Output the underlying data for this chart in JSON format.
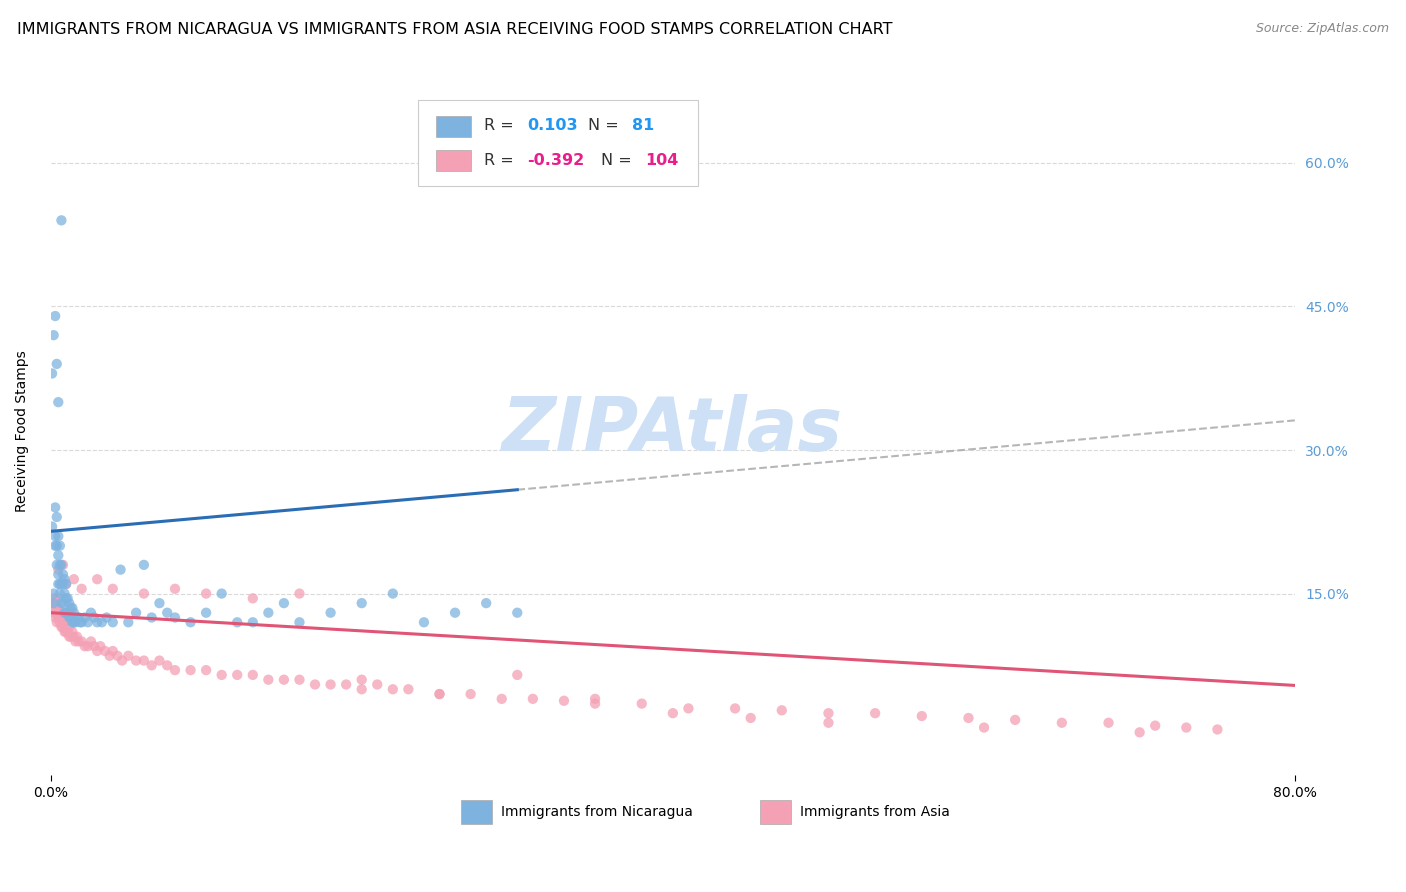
{
  "title": "IMMIGRANTS FROM NICARAGUA VS IMMIGRANTS FROM ASIA RECEIVING FOOD STAMPS CORRELATION CHART",
  "source": "Source: ZipAtlas.com",
  "ylabel": "Receiving Food Stamps",
  "ytick_labels": [
    "15.0%",
    "30.0%",
    "45.0%",
    "60.0%"
  ],
  "ytick_values": [
    0.15,
    0.3,
    0.45,
    0.6
  ],
  "xlim": [
    0.0,
    0.8
  ],
  "ylim": [
    -0.04,
    0.68
  ],
  "r_nicaragua": 0.103,
  "n_nicaragua": 81,
  "r_asia": -0.392,
  "n_asia": 104,
  "color_nicaragua": "#7eb3e0",
  "color_asia": "#f4a0b5",
  "line_color_nicaragua": "#2a6db5",
  "line_color_asia": "#e05575",
  "dash_color": "#aaaaaa",
  "background_color": "#ffffff",
  "watermark_color": "#cde0f5",
  "grid_color": "#d9d9d9",
  "title_fontsize": 11.5,
  "axis_label_fontsize": 10,
  "tick_fontsize": 10,
  "right_tick_color": "#5b9bd5",
  "scatter_alpha": 0.75,
  "scatter_size": 55,
  "nic_x": [
    0.001,
    0.002,
    0.002,
    0.003,
    0.003,
    0.003,
    0.004,
    0.004,
    0.004,
    0.005,
    0.005,
    0.005,
    0.005,
    0.006,
    0.006,
    0.006,
    0.006,
    0.007,
    0.007,
    0.007,
    0.007,
    0.008,
    0.008,
    0.008,
    0.009,
    0.009,
    0.009,
    0.01,
    0.01,
    0.01,
    0.011,
    0.011,
    0.012,
    0.012,
    0.013,
    0.013,
    0.014,
    0.014,
    0.015,
    0.015,
    0.016,
    0.017,
    0.018,
    0.019,
    0.02,
    0.022,
    0.024,
    0.026,
    0.028,
    0.03,
    0.033,
    0.036,
    0.04,
    0.045,
    0.05,
    0.055,
    0.06,
    0.065,
    0.07,
    0.075,
    0.08,
    0.09,
    0.1,
    0.11,
    0.12,
    0.13,
    0.14,
    0.15,
    0.16,
    0.18,
    0.2,
    0.22,
    0.24,
    0.26,
    0.28,
    0.3,
    0.001,
    0.002,
    0.003,
    0.004,
    0.005
  ],
  "nic_y": [
    0.22,
    0.14,
    0.15,
    0.2,
    0.21,
    0.24,
    0.18,
    0.2,
    0.23,
    0.16,
    0.17,
    0.19,
    0.21,
    0.15,
    0.16,
    0.18,
    0.2,
    0.14,
    0.16,
    0.18,
    0.54,
    0.14,
    0.16,
    0.17,
    0.13,
    0.15,
    0.165,
    0.13,
    0.145,
    0.16,
    0.13,
    0.145,
    0.125,
    0.14,
    0.125,
    0.135,
    0.12,
    0.135,
    0.12,
    0.13,
    0.12,
    0.125,
    0.125,
    0.12,
    0.12,
    0.125,
    0.12,
    0.13,
    0.125,
    0.12,
    0.12,
    0.125,
    0.12,
    0.175,
    0.12,
    0.13,
    0.18,
    0.125,
    0.14,
    0.13,
    0.125,
    0.12,
    0.13,
    0.15,
    0.12,
    0.12,
    0.13,
    0.14,
    0.12,
    0.13,
    0.14,
    0.15,
    0.12,
    0.13,
    0.14,
    0.13,
    0.38,
    0.42,
    0.44,
    0.39,
    0.35
  ],
  "asia_x": [
    0.001,
    0.002,
    0.002,
    0.003,
    0.003,
    0.004,
    0.004,
    0.005,
    0.005,
    0.005,
    0.006,
    0.006,
    0.007,
    0.007,
    0.008,
    0.008,
    0.009,
    0.009,
    0.01,
    0.01,
    0.011,
    0.012,
    0.012,
    0.013,
    0.014,
    0.015,
    0.016,
    0.017,
    0.018,
    0.02,
    0.022,
    0.024,
    0.026,
    0.028,
    0.03,
    0.032,
    0.035,
    0.038,
    0.04,
    0.043,
    0.046,
    0.05,
    0.055,
    0.06,
    0.065,
    0.07,
    0.075,
    0.08,
    0.09,
    0.1,
    0.11,
    0.12,
    0.13,
    0.14,
    0.15,
    0.16,
    0.17,
    0.18,
    0.19,
    0.2,
    0.21,
    0.22,
    0.23,
    0.25,
    0.27,
    0.29,
    0.31,
    0.33,
    0.35,
    0.38,
    0.41,
    0.44,
    0.47,
    0.5,
    0.53,
    0.56,
    0.59,
    0.62,
    0.65,
    0.68,
    0.71,
    0.73,
    0.75,
    0.005,
    0.008,
    0.01,
    0.015,
    0.02,
    0.03,
    0.04,
    0.06,
    0.08,
    0.1,
    0.13,
    0.16,
    0.2,
    0.25,
    0.3,
    0.35,
    0.4,
    0.45,
    0.5,
    0.6,
    0.7
  ],
  "asia_y": [
    0.14,
    0.13,
    0.145,
    0.125,
    0.135,
    0.12,
    0.13,
    0.125,
    0.135,
    0.145,
    0.12,
    0.13,
    0.115,
    0.125,
    0.115,
    0.125,
    0.11,
    0.12,
    0.11,
    0.12,
    0.11,
    0.105,
    0.115,
    0.105,
    0.11,
    0.105,
    0.1,
    0.105,
    0.1,
    0.1,
    0.095,
    0.095,
    0.1,
    0.095,
    0.09,
    0.095,
    0.09,
    0.085,
    0.09,
    0.085,
    0.08,
    0.085,
    0.08,
    0.08,
    0.075,
    0.08,
    0.075,
    0.07,
    0.07,
    0.07,
    0.065,
    0.065,
    0.065,
    0.06,
    0.06,
    0.06,
    0.055,
    0.055,
    0.055,
    0.05,
    0.055,
    0.05,
    0.05,
    0.045,
    0.045,
    0.04,
    0.04,
    0.038,
    0.035,
    0.035,
    0.03,
    0.03,
    0.028,
    0.025,
    0.025,
    0.022,
    0.02,
    0.018,
    0.015,
    0.015,
    0.012,
    0.01,
    0.008,
    0.175,
    0.18,
    0.16,
    0.165,
    0.155,
    0.165,
    0.155,
    0.15,
    0.155,
    0.15,
    0.145,
    0.15,
    0.06,
    0.045,
    0.065,
    0.04,
    0.025,
    0.02,
    0.015,
    0.01,
    0.005
  ],
  "nic_line_x_start": 0.0,
  "nic_line_x_solid_end": 0.3,
  "nic_line_x_dash_end": 0.8,
  "nic_line_y_intercept": 0.215,
  "nic_line_slope": 0.145,
  "asia_line_x_start": 0.0,
  "asia_line_x_end": 0.8,
  "asia_line_y_intercept": 0.13,
  "asia_line_slope": -0.095
}
